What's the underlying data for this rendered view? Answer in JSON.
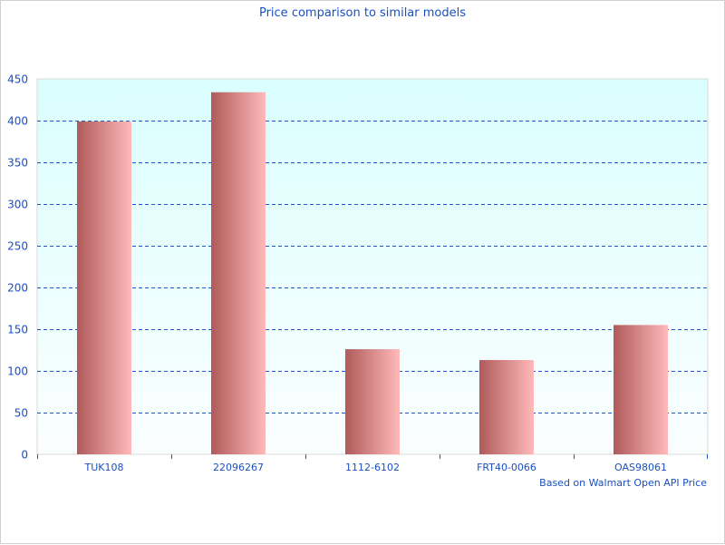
{
  "chart_data": {
    "type": "bar",
    "title": "Price comparison to similar models",
    "categories": [
      "TUK108",
      "22096267",
      "1112-6102",
      "FRT40-0066",
      "OAS98061"
    ],
    "values": [
      399,
      434,
      126,
      113,
      155
    ],
    "ylim": [
      0,
      450
    ],
    "yticks": [
      0,
      50,
      100,
      150,
      200,
      250,
      300,
      350,
      400,
      450
    ],
    "xlabel": "",
    "ylabel": "",
    "grid": true,
    "annotation": "Based on Walmart Open API Price",
    "colors": {
      "bar_dark": "#b05a5a",
      "bar_light": "#ffbaba",
      "plot_bg_top": "#dafefe",
      "plot_bg_bottom": "#fbfefe",
      "grid": "#2255cc",
      "text": "#1a4fc4"
    }
  }
}
